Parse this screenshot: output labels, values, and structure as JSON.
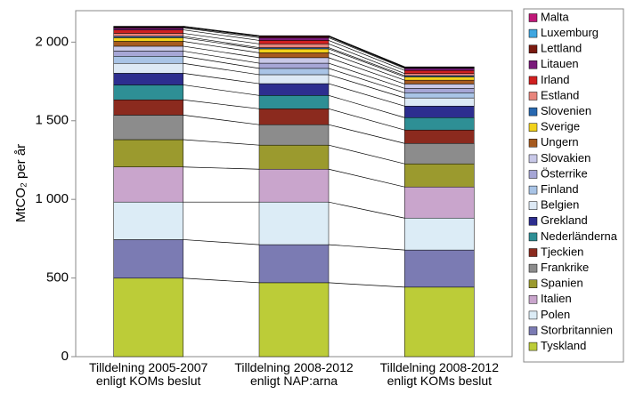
{
  "chart_data": {
    "type": "stacked_bar",
    "y_label": "MtCO₂ per år",
    "categories": [
      "Tilldelning 2005-2007 enligt KOMs beslut",
      "Tilldelning 2008-2012 enligt NAP:arna",
      "Tilldelning 2008-2012 enligt KOMs beslut"
    ],
    "ylim": [
      0,
      2200
    ],
    "yticks": [
      0,
      500,
      {
        "value": 1000,
        "label": "1 000"
      },
      {
        "value": 1500,
        "label": "1 500"
      },
      {
        "value": 2000,
        "label": "2 000"
      }
    ],
    "series": [
      {
        "name": "Tyskland",
        "color": "#bccc38",
        "values": [
          499,
          470,
          442
        ]
      },
      {
        "name": "Storbritannien",
        "color": "#7b7bb3",
        "values": [
          245,
          242,
          236
        ]
      },
      {
        "name": "Polen",
        "color": "#dcecf6",
        "values": [
          239,
          271,
          203
        ]
      },
      {
        "name": "Italien",
        "color": "#c9a5cc",
        "values": [
          223,
          209,
          198
        ]
      },
      {
        "name": "Spanien",
        "color": "#9b9a2e",
        "values": [
          174,
          153,
          147
        ]
      },
      {
        "name": "Frankrike",
        "color": "#8c8c8c",
        "values": [
          156,
          130,
          130
        ]
      },
      {
        "name": "Tjeckien",
        "color": "#8b2a1e",
        "values": [
          97,
          101,
          85
        ]
      },
      {
        "name": "Nederländerna",
        "color": "#2e8f95",
        "values": [
          95,
          85,
          79
        ]
      },
      {
        "name": "Grekland",
        "color": "#2d2e8f",
        "values": [
          74,
          75,
          73
        ]
      },
      {
        "name": "Belgien",
        "color": "#dde9f5",
        "values": [
          63,
          57,
          52
        ]
      },
      {
        "name": "Finland",
        "color": "#a9c4e6",
        "values": [
          45,
          40,
          33
        ]
      },
      {
        "name": "Österrike",
        "color": "#a6a6d6",
        "values": [
          33,
          33,
          28
        ]
      },
      {
        "name": "Slovakien",
        "color": "#c8c8e8",
        "values": [
          31,
          35,
          28
        ]
      },
      {
        "name": "Ungern",
        "color": "#a65a1f",
        "values": [
          31,
          31,
          24
        ]
      },
      {
        "name": "Sverige",
        "color": "#f2d21b",
        "values": [
          23,
          25,
          21
        ]
      },
      {
        "name": "Slovenien",
        "color": "#2868b0",
        "values": [
          9,
          8,
          8
        ]
      },
      {
        "name": "Estland",
        "color": "#e8857c",
        "values": [
          19,
          24,
          13
        ]
      },
      {
        "name": "Irland",
        "color": "#d02020",
        "values": [
          22,
          22,
          20
        ]
      },
      {
        "name": "Litauen",
        "color": "#7a1a7a",
        "values": [
          12,
          17,
          13
        ]
      },
      {
        "name": "Lettland",
        "color": "#7a1a10",
        "values": [
          5,
          7,
          4
        ]
      },
      {
        "name": "Luxemburg",
        "color": "#3fa6e0",
        "values": [
          3,
          3,
          3
        ]
      },
      {
        "name": "Malta",
        "color": "#c01878",
        "values": [
          3,
          3,
          3
        ]
      }
    ]
  }
}
